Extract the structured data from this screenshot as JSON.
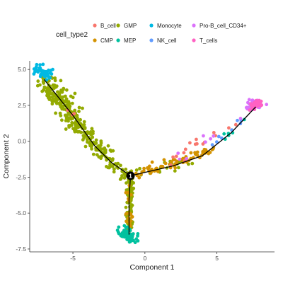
{
  "chart_data": {
    "type": "scatter",
    "legend": {
      "title": "cell_type2",
      "entries": [
        {
          "name": "B_cell",
          "color": "#F8766D"
        },
        {
          "name": "CMP",
          "color": "#D39200"
        },
        {
          "name": "GMP",
          "color": "#93AA00"
        },
        {
          "name": "MEP",
          "color": "#00C19F"
        },
        {
          "name": "Monocyte",
          "color": "#00B9E3"
        },
        {
          "name": "NK_cell",
          "color": "#619CFF"
        },
        {
          "name": "Pro-B_cell_CD34+",
          "color": "#DB72FB"
        },
        {
          "name": "T_cells",
          "color": "#FF61C3"
        }
      ]
    },
    "xlabel": "Component 1",
    "ylabel": "Component 2",
    "xlim": [
      -8,
      9
    ],
    "ylim": [
      -7.7,
      5.6
    ],
    "xticks": [
      -5,
      0,
      5
    ],
    "yticks": [
      -7.5,
      -5.0,
      -2.5,
      0.0,
      2.5,
      5.0
    ],
    "ytick_labels": [
      "-7.5",
      "-5.0",
      "-2.5",
      "0.0",
      "2.5",
      "5.0"
    ],
    "xtick_labels": [
      "-5",
      "0",
      "5"
    ],
    "grid": false,
    "legend_position": "top",
    "trajectory": {
      "branch_node": {
        "x": -1.0,
        "y": -2.4,
        "label": "1"
      },
      "paths": [
        [
          [
            -7.0,
            4.3
          ],
          [
            -5.0,
            1.8
          ],
          [
            -3.5,
            -0.3
          ],
          [
            -2.3,
            -1.5
          ],
          [
            -1.0,
            -2.4
          ]
        ],
        [
          [
            -1.0,
            -2.4
          ],
          [
            2.0,
            -1.7
          ],
          [
            4.0,
            -1.0
          ],
          [
            6.0,
            0.6
          ],
          [
            7.7,
            2.4
          ]
        ],
        [
          [
            -1.0,
            -2.4
          ],
          [
            -1.1,
            -4.0
          ],
          [
            -1.1,
            -5.5
          ],
          [
            -1.1,
            -6.5
          ]
        ]
      ]
    },
    "series": [
      {
        "name": "GMP",
        "clusters": [
          {
            "n": 190,
            "from": [
              -7.0,
              4.3
            ],
            "to": [
              -4.7,
              1.3
            ],
            "spread": 0.32
          },
          {
            "n": 110,
            "from": [
              -4.7,
              1.3
            ],
            "to": [
              -2.4,
              -1.5
            ],
            "spread": 0.3
          },
          {
            "n": 35,
            "from": [
              -2.4,
              -1.5
            ],
            "to": [
              -1.1,
              -2.4
            ],
            "spread": 0.18
          },
          {
            "n": 90,
            "from": [
              -1.0,
              -2.6
            ],
            "to": [
              -1.1,
              -6.2
            ],
            "spread": 0.12
          },
          {
            "n": 22,
            "from": [
              -0.6,
              -2.3
            ],
            "to": [
              3.5,
              -1.3
            ],
            "spread": 0.15
          }
        ]
      },
      {
        "name": "CMP",
        "clusters": [
          {
            "n": 75,
            "from": [
              -0.6,
              -2.3
            ],
            "to": [
              4.8,
              -0.6
            ],
            "spread": 0.15
          },
          {
            "n": 18,
            "from": [
              -1.1,
              -3.0
            ],
            "to": [
              -1.1,
              -6.0
            ],
            "spread": 0.1
          }
        ]
      },
      {
        "name": "MEP",
        "clusters": [
          {
            "n": 65,
            "from": [
              -1.6,
              -6.2
            ],
            "to": [
              -0.9,
              -6.9
            ],
            "spread": 0.22
          },
          {
            "n": 6,
            "from": [
              5.5,
              0.2
            ],
            "to": [
              7.0,
              1.5
            ],
            "spread": 0.1
          }
        ]
      },
      {
        "name": "Monocyte",
        "clusters": [
          {
            "n": 45,
            "from": [
              -7.4,
              5.1
            ],
            "to": [
              -6.5,
              4.5
            ],
            "spread": 0.2
          }
        ]
      },
      {
        "name": "B_cell",
        "clusters": [
          {
            "n": 16,
            "from": [
              1.0,
              -1.9
            ],
            "to": [
              7.0,
              1.8
            ],
            "spread": 0.2
          },
          {
            "n": 3,
            "from": [
              -5.5,
              2.4
            ],
            "to": [
              -4.8,
              1.8
            ],
            "spread": 0.15
          }
        ]
      },
      {
        "name": "NK_cell",
        "clusters": [
          {
            "n": 8,
            "from": [
              4.5,
              -0.3
            ],
            "to": [
              7.0,
              1.6
            ],
            "spread": 0.1
          }
        ]
      },
      {
        "name": "Pro-B_cell_CD34+",
        "clusters": [
          {
            "n": 8,
            "from": [
              2.0,
              -1.6
            ],
            "to": [
              7.0,
              1.8
            ],
            "spread": 0.25
          },
          {
            "n": 40,
            "from": [
              7.2,
              2.3
            ],
            "to": [
              8.0,
              2.7
            ],
            "spread": 0.18
          }
        ]
      },
      {
        "name": "T_cells",
        "clusters": [
          {
            "n": 30,
            "from": [
              7.3,
              2.3
            ],
            "to": [
              8.0,
              2.7
            ],
            "spread": 0.15
          }
        ]
      }
    ]
  }
}
